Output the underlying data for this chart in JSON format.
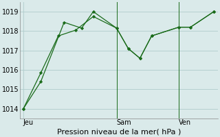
{
  "background_color": "#daeaea",
  "grid_color": "#b0cccc",
  "line_color": "#1a6b1a",
  "marker_color": "#1a6b1a",
  "xlabel": "Pression niveau de la mer( hPa )",
  "ylim": [
    1013.5,
    1019.5
  ],
  "yticks": [
    1014,
    1015,
    1016,
    1017,
    1018,
    1019
  ],
  "day_labels": [
    "Jeu",
    "Sam",
    "Ven"
  ],
  "day_positions": [
    0.0,
    8.0,
    13.333
  ],
  "vline_positions": [
    8.0,
    13.333
  ],
  "xlim": [
    -0.3,
    16.7
  ],
  "series1_x": [
    0.0,
    1.5,
    3.5,
    5.0,
    6.0,
    8.0,
    9.0,
    10.0,
    11.0,
    13.333,
    14.333,
    16.333
  ],
  "series1_y": [
    1014.0,
    1015.4,
    1018.45,
    1018.15,
    1019.0,
    1018.15,
    1017.1,
    1016.6,
    1017.75,
    1018.2,
    1018.2,
    1019.0
  ],
  "series2_x": [
    0.0,
    1.5,
    3.0,
    4.5,
    6.0,
    8.0,
    9.0,
    10.0,
    11.0,
    13.333,
    14.333,
    16.333
  ],
  "series2_y": [
    1014.0,
    1015.85,
    1017.75,
    1018.05,
    1018.75,
    1018.15,
    1017.1,
    1016.6,
    1017.75,
    1018.2,
    1018.2,
    1019.0
  ],
  "xlabel_fontsize": 8,
  "tick_labelsize": 7
}
